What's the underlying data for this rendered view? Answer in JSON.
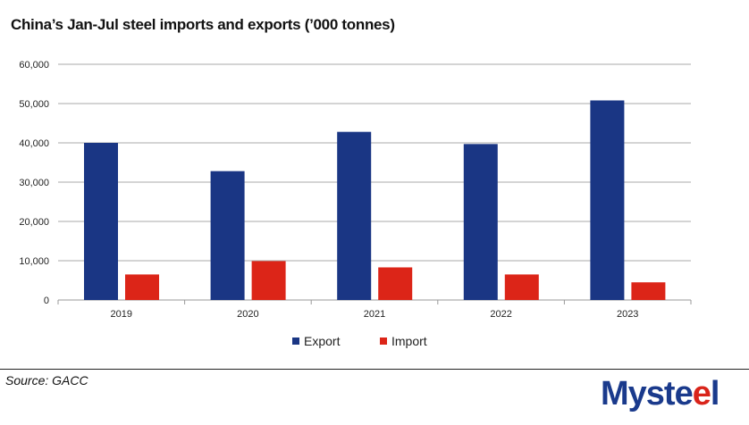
{
  "chart_data": {
    "type": "bar",
    "title": "China’s Jan-Jul steel imports and exports (’000 tonnes)",
    "categories": [
      "2019",
      "2020",
      "2021",
      "2022",
      "2023"
    ],
    "series": [
      {
        "name": "Export",
        "color": "#1a3684",
        "values": [
          40000,
          32800,
          42800,
          39700,
          50800
        ]
      },
      {
        "name": "Import",
        "color": "#dc2518",
        "values": [
          6500,
          9900,
          8300,
          6500,
          4500
        ]
      }
    ],
    "ylim": [
      0,
      60000
    ],
    "yticks": [
      "0",
      "10,000",
      "20,000",
      "30,000",
      "40,000",
      "50,000",
      "60,000"
    ],
    "grid": true,
    "legend": "bottom"
  },
  "footer": {
    "source": "Source: GACC",
    "logo": "Mysteel"
  }
}
